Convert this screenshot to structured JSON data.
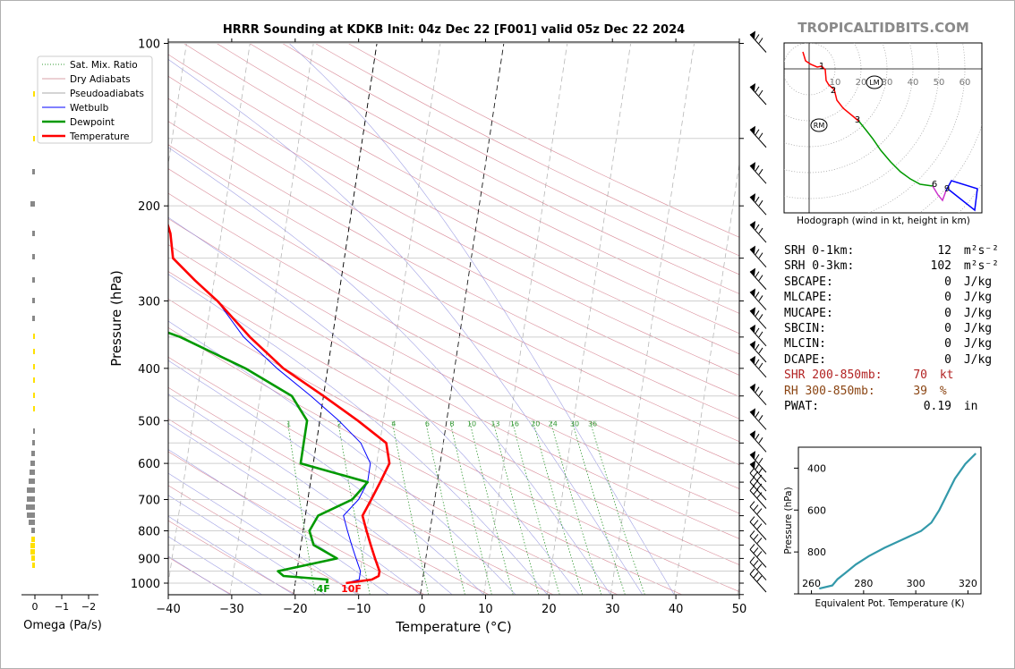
{
  "title": "HRRR Sounding at KDKB Init: 04z Dec 22 [F001] valid 05z Dec 22 2024",
  "brand": "TROPICALTIDBITS.COM",
  "colors": {
    "temperature": "#ff0000",
    "dewpoint": "#009900",
    "wetbulb": "#0000ff",
    "dry_adiabat": "#cc6677",
    "moist_adiabat": "#8888dd",
    "mixing_ratio": "#339933",
    "shr_text": "#b22222",
    "rh_text": "#8b4513",
    "theta_e": "#3399aa"
  },
  "chart_data": [
    {
      "type": "line",
      "name": "skew-T",
      "xlabel": "Temperature (°C)",
      "ylabel": "Pressure (hPa)",
      "xlim": [
        -40,
        50
      ],
      "ylim": [
        1050,
        100
      ],
      "y_scale": "log",
      "x_ticks": [
        "−40",
        "−30",
        "−20",
        "−10",
        "0",
        "10",
        "20",
        "30",
        "40",
        "50"
      ],
      "y_ticks": [
        "100",
        "200",
        "300",
        "400",
        "500",
        "600",
        "700",
        "800",
        "900",
        "1000"
      ],
      "grid": true,
      "legend": "top-left",
      "legend_entries": [
        "Sat. Mix. Ratio",
        "Dry Adiabats",
        "Pseudoadiabats",
        "Wetbulb",
        "Dewpoint",
        "Temperature"
      ],
      "mixing_ratio_labels": [
        "1",
        "2",
        "4",
        "6",
        "8",
        "10",
        "13",
        "16",
        "20",
        "24",
        "30",
        "36"
      ],
      "surface_labels": {
        "dewpoint": "4F",
        "temperature": "10F"
      },
      "series": [
        {
          "name": "Temperature",
          "points": [
            [
              1000,
              -12
            ],
            [
              985,
              -8
            ],
            [
              970,
              -7
            ],
            [
              950,
              -7
            ],
            [
              900,
              -8
            ],
            [
              850,
              -9
            ],
            [
              800,
              -10
            ],
            [
              750,
              -11
            ],
            [
              700,
              -10
            ],
            [
              650,
              -9
            ],
            [
              600,
              -8
            ],
            [
              550,
              -9
            ],
            [
              500,
              -14
            ],
            [
              450,
              -20
            ],
            [
              400,
              -27
            ],
            [
              350,
              -33
            ],
            [
              300,
              -39
            ],
            [
              275,
              -43
            ],
            [
              250,
              -47
            ],
            [
              225,
              -48
            ],
            [
              200,
              -50
            ],
            [
              175,
              -54
            ],
            [
              150,
              -55
            ],
            [
              125,
              -58
            ],
            [
              100,
              -60
            ]
          ]
        },
        {
          "name": "Dewpoint",
          "points": [
            [
              1000,
              -15
            ],
            [
              985,
              -15
            ],
            [
              970,
              -22
            ],
            [
              950,
              -23
            ],
            [
              900,
              -14
            ],
            [
              850,
              -18
            ],
            [
              800,
              -19
            ],
            [
              750,
              -18
            ],
            [
              700,
              -13
            ],
            [
              650,
              -11
            ],
            [
              600,
              -22
            ],
            [
              550,
              -22
            ],
            [
              500,
              -22
            ],
            [
              450,
              -25
            ],
            [
              400,
              -33
            ],
            [
              350,
              -44
            ],
            [
              325,
              -52
            ],
            [
              300,
              -58
            ],
            [
              275,
              -63
            ],
            [
              250,
              -66
            ],
            [
              200,
              -75
            ],
            [
              175,
              -82
            ],
            [
              150,
              -92
            ],
            [
              125,
              -92
            ],
            [
              100,
              -92
            ]
          ]
        },
        {
          "name": "Wetbulb",
          "points": [
            [
              1000,
              -12
            ],
            [
              985,
              -10
            ],
            [
              950,
              -10
            ],
            [
              900,
              -11
            ],
            [
              850,
              -12
            ],
            [
              800,
              -13
            ],
            [
              750,
              -14
            ],
            [
              700,
              -12
            ],
            [
              650,
              -11
            ],
            [
              600,
              -11
            ],
            [
              550,
              -13
            ],
            [
              500,
              -17
            ],
            [
              450,
              -22
            ],
            [
              400,
              -28
            ],
            [
              350,
              -34
            ],
            [
              300,
              -39
            ],
            [
              275,
              -43
            ]
          ]
        }
      ]
    },
    {
      "type": "hodograph",
      "caption": "Hodograph (wind in kt, height in km)",
      "ring_labels": [
        "10",
        "20",
        "30",
        "40",
        "50",
        "60"
      ],
      "height_labels": [
        "1",
        "2",
        "3",
        "6",
        "9"
      ],
      "markers": [
        "LM",
        "RM"
      ]
    },
    {
      "type": "line",
      "name": "theta-e profile",
      "xlabel": "Equivalent Pot. Temperature (K)",
      "ylabel": "Pressure (hPa)",
      "x_ticks": [
        "260",
        "280",
        "300",
        "320"
      ],
      "y_ticks": [
        "400",
        "600",
        "800"
      ],
      "xlim": [
        255,
        325
      ],
      "ylim": [
        1000,
        300
      ],
      "points": [
        [
          263,
          975
        ],
        [
          268,
          960
        ],
        [
          270,
          930
        ],
        [
          273,
          900
        ],
        [
          277,
          860
        ],
        [
          282,
          820
        ],
        [
          288,
          780
        ],
        [
          295,
          740
        ],
        [
          302,
          700
        ],
        [
          306,
          660
        ],
        [
          309,
          600
        ],
        [
          311,
          550
        ],
        [
          313,
          500
        ],
        [
          315,
          450
        ],
        [
          319,
          380
        ],
        [
          323,
          330
        ]
      ]
    },
    {
      "type": "bar",
      "name": "omega",
      "xlabel": "Omega (Pa/s)",
      "x_ticks": [
        "0",
        "−1",
        "−2"
      ],
      "orientation": "horizontal"
    }
  ],
  "indices": [
    {
      "label": "SRH 0-1km:",
      "value": "12",
      "unit": "m²s⁻²",
      "style": "normal"
    },
    {
      "label": "SRH 0-3km:",
      "value": "102",
      "unit": "m²s⁻²",
      "style": "normal"
    },
    {
      "label": "SBCAPE:",
      "value": "0",
      "unit": "J/kg",
      "style": "normal"
    },
    {
      "label": "MLCAPE:",
      "value": "0",
      "unit": "J/kg",
      "style": "normal"
    },
    {
      "label": "MUCAPE:",
      "value": "0",
      "unit": "J/kg",
      "style": "normal"
    },
    {
      "label": "SBCIN:",
      "value": "0",
      "unit": "J/kg",
      "style": "normal"
    },
    {
      "label": "MLCIN:",
      "value": "0",
      "unit": "J/kg",
      "style": "normal"
    },
    {
      "label": "DCAPE:",
      "value": "0",
      "unit": "J/kg",
      "style": "normal"
    },
    {
      "label": "SHR 200-850mb:",
      "value": "70",
      "unit": "kt",
      "style": "shr"
    },
    {
      "label": "RH 300-850mb:",
      "value": "39",
      "unit": "%",
      "style": "rh"
    },
    {
      "label": "PWAT:",
      "value": "0.19",
      "unit": "in",
      "style": "normal"
    }
  ]
}
